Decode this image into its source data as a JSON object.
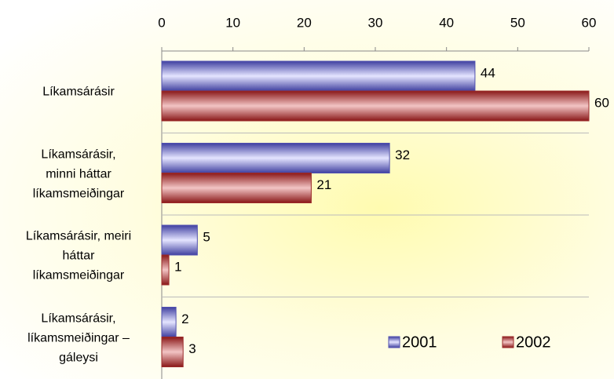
{
  "chart_data": {
    "type": "bar",
    "orientation": "horizontal",
    "categories": [
      "Líkamsárásir",
      "Líkamsárásir,\nminni háttar\nlíkamsmeiðingar",
      "Líkamsárásir, meiri\nháttar\nlíkamsmeiðingar",
      "Líkamsárásir,\nlíkamsmeiðingar –\ngáleysi"
    ],
    "series": [
      {
        "name": "2001",
        "color": "#5050b0",
        "values": [
          44,
          32,
          5,
          2
        ]
      },
      {
        "name": "2002",
        "color": "#9b2a2a",
        "values": [
          60,
          21,
          1,
          3
        ]
      }
    ],
    "xlim": [
      0,
      60
    ],
    "xticks": [
      0,
      10,
      20,
      30,
      40,
      50,
      60
    ],
    "grid": true,
    "legend": "lower right"
  }
}
